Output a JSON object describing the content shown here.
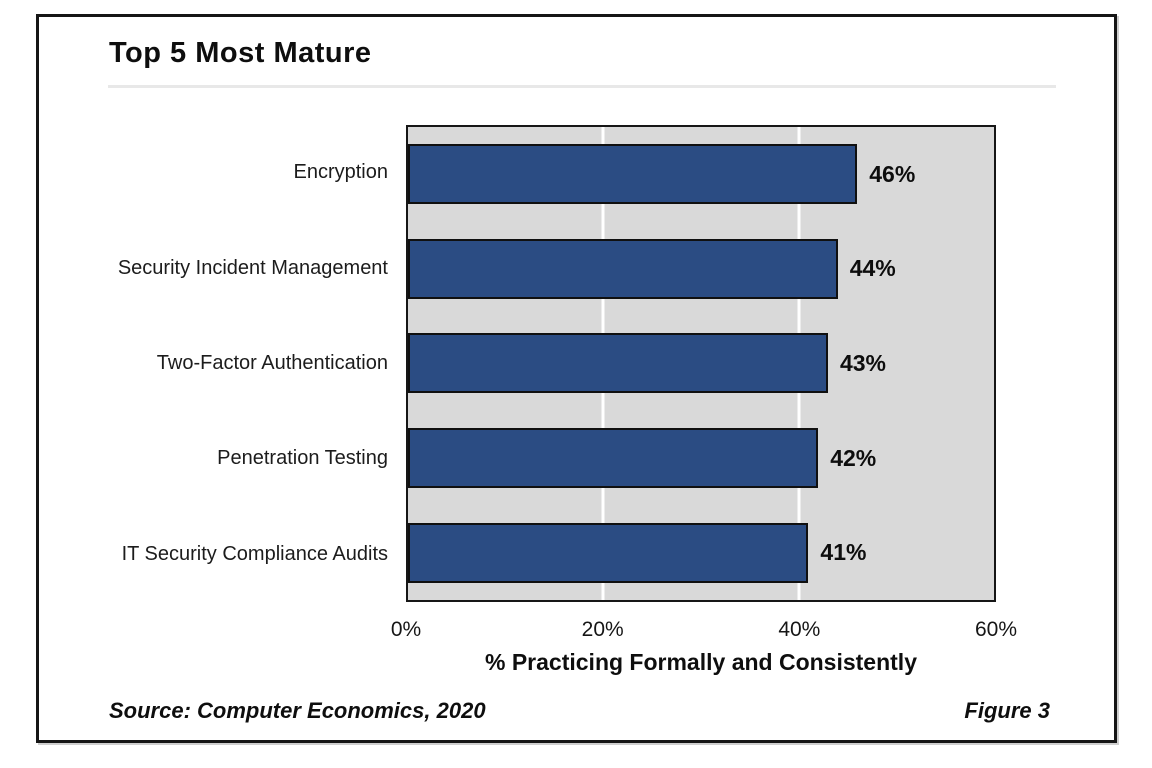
{
  "figure": {
    "title": "Top 5 Most Mature",
    "source": "Source: Computer Economics, 2020",
    "figure_label": "Figure 3"
  },
  "chart_data": {
    "type": "bar",
    "orientation": "horizontal",
    "title": "Top 5 Most Mature",
    "categories": [
      "Encryption",
      "Security Incident Management",
      "Two-Factor Authentication",
      "Penetration Testing",
      "IT Security Compliance Audits"
    ],
    "values": [
      46,
      44,
      43,
      42,
      41
    ],
    "value_labels": [
      "46%",
      "44%",
      "43%",
      "42%",
      "41%"
    ],
    "xlabel": "% Practicing Formally and Consistently",
    "ylabel": "",
    "xlim": [
      0,
      60
    ],
    "xticks": [
      "0%",
      "20%",
      "40%",
      "60%"
    ],
    "xtick_values": [
      0,
      20,
      40,
      60
    ],
    "grid": "vertical white gridlines at interior ticks",
    "legend": "none",
    "colors": {
      "bar_fill": "#2b4c83",
      "bar_border": "#101010",
      "plot_background": "#d9d9d9",
      "gridline": "#ffffff",
      "frame_border": "#161616",
      "title_underline": "#e8e8e8"
    }
  }
}
